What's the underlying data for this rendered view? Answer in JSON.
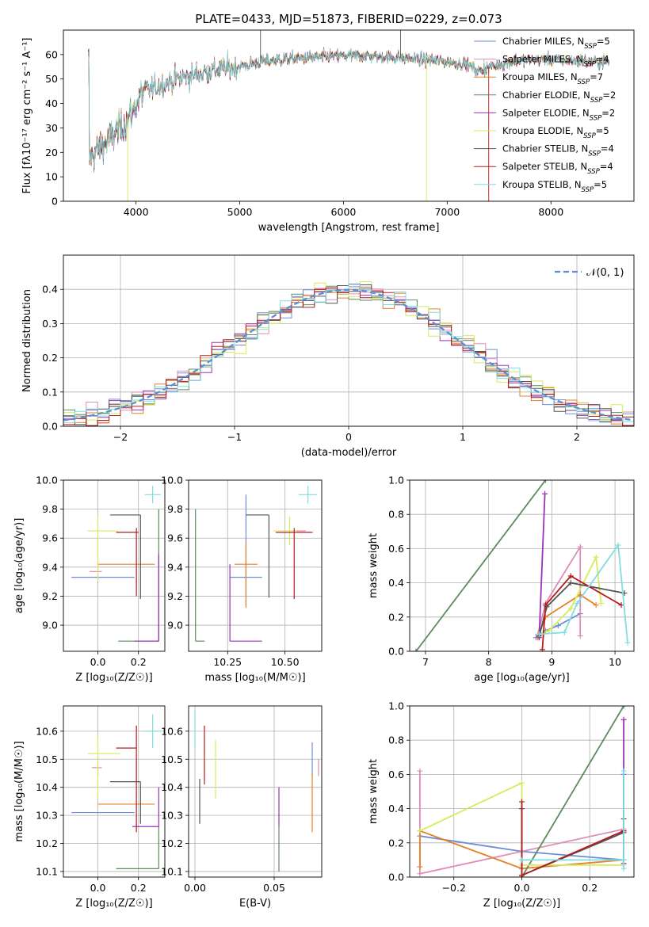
{
  "colors": {
    "chabrier_miles": "#6c8ed8",
    "salpeter_miles": "#e08bb8",
    "kroupa_miles": "#e6802a",
    "chabrier_elodie": "#5e8a60",
    "salpeter_elodie": "#9a32b8",
    "kroupa_elodie": "#d4ec5c",
    "chabrier_stelib": "#555555",
    "salpeter_stelib": "#b51c1c",
    "kroupa_stelib": "#7fdde0",
    "normal": "#5b8fd4"
  },
  "chart_data": [
    {
      "id": "spectrum",
      "type": "line",
      "title": "PLATE=0433, MJD=51873, FIBERID=0229, z=0.073",
      "xlabel": "wavelength [Angstrom, rest frame]",
      "ylabel": "Flux [fλ10⁻¹⁷ erg cm⁻² s⁻¹ A⁻¹]",
      "xlim": [
        3300,
        8800
      ],
      "ylim": [
        0,
        70
      ],
      "xticks": [
        "4000",
        "5000",
        "6000",
        "7000",
        "8000"
      ],
      "yticks": [
        "0",
        "10",
        "20",
        "30",
        "40",
        "50",
        "60"
      ],
      "continuum": [
        [
          3550,
          18
        ],
        [
          3700,
          24
        ],
        [
          3850,
          30
        ],
        [
          3950,
          35
        ],
        [
          4050,
          44
        ],
        [
          4200,
          47
        ],
        [
          4400,
          50
        ],
        [
          4600,
          52
        ],
        [
          4800,
          54
        ],
        [
          5000,
          55
        ],
        [
          5200,
          57
        ],
        [
          5400,
          58
        ],
        [
          5600,
          58.5
        ],
        [
          5800,
          59
        ],
        [
          6000,
          59.5
        ],
        [
          6200,
          59.5
        ],
        [
          6400,
          59
        ],
        [
          6600,
          58.5
        ],
        [
          6800,
          58
        ],
        [
          7000,
          57
        ],
        [
          7200,
          56
        ],
        [
          7300,
          53
        ],
        [
          7400,
          55
        ],
        [
          7600,
          57
        ],
        [
          7800,
          58
        ],
        [
          8000,
          58
        ],
        [
          8200,
          57.5
        ],
        [
          8500,
          57
        ]
      ],
      "spikes": [
        [
          3920,
          0
        ],
        [
          5200,
          80
        ],
        [
          6550,
          80
        ],
        [
          6800,
          0
        ],
        [
          7400,
          0
        ]
      ],
      "legend": "top-right",
      "legend_entries": [
        {
          "label": "Chabrier MILES, N",
          "sub": "SSP",
          "tail": "=5"
        },
        {
          "label": "Salpeter MILES, N",
          "sub": "SSP",
          "tail": "=4"
        },
        {
          "label": "Kroupa MILES, N",
          "sub": "SSP",
          "tail": "=7"
        },
        {
          "label": "Chabrier ELODIE, N",
          "sub": "SSP",
          "tail": "=2"
        },
        {
          "label": "Salpeter ELODIE, N",
          "sub": "SSP",
          "tail": "=2"
        },
        {
          "label": "Kroupa ELODIE, N",
          "sub": "SSP",
          "tail": "=5"
        },
        {
          "label": "Chabrier STELIB, N",
          "sub": "SSP",
          "tail": "=4"
        },
        {
          "label": "Salpeter STELIB, N",
          "sub": "SSP",
          "tail": "=4"
        },
        {
          "label": "Kroupa STELIB, N",
          "sub": "SSP",
          "tail": "=5"
        }
      ]
    },
    {
      "id": "residuals",
      "type": "line",
      "xlabel": "(data-model)/error",
      "ylabel": "Normed distribution",
      "xlim": [
        -2.5,
        2.5
      ],
      "ylim": [
        0,
        0.5
      ],
      "xticks": [
        "−2",
        "−1",
        "0",
        "1",
        "2"
      ],
      "yticks": [
        "0.0",
        "0.1",
        "0.2",
        "0.3",
        "0.4"
      ],
      "grid": true,
      "legend": "top-right",
      "legend_label": "𝒩(0, 1)",
      "bin_width": 0.1
    },
    {
      "id": "age_vs_Z",
      "type": "scatter",
      "xlabel": "Z [log₁₀(Z/Z☉)]",
      "ylabel": "age  [log₁₀(age/yr)]",
      "xlim": [
        -0.17,
        0.33
      ],
      "ylim": [
        8.82,
        10.0
      ],
      "xticks": [
        "0.0",
        "0.2"
      ],
      "yticks": [
        "9.0",
        "9.2",
        "9.4",
        "9.6",
        "9.8",
        "10.0"
      ],
      "points": [
        {
          "x": 0.0,
          "y": 9.33,
          "ex": [
            0.13,
            0.18
          ],
          "ey": [
            0.0,
            0.0
          ],
          "c": "chabrier_miles"
        },
        {
          "x": 0.0,
          "y": 9.37,
          "ex": [
            0.04,
            0.02
          ],
          "ey": [
            0.08,
            0.07
          ],
          "c": "salpeter_miles"
        },
        {
          "x": 0.0,
          "y": 9.42,
          "ex": [
            0.0,
            0.28
          ],
          "ey": [
            0.0,
            0.0
          ],
          "c": "kroupa_miles"
        },
        {
          "x": 0.3,
          "y": 8.89,
          "ex": [
            0.2,
            0.0
          ],
          "ey": [
            0.0,
            0.91
          ],
          "c": "chabrier_elodie"
        },
        {
          "x": 0.3,
          "y": 8.89,
          "ex": [
            0.12,
            0.0
          ],
          "ey": [
            0.0,
            0.6
          ],
          "c": "salpeter_elodie"
        },
        {
          "x": 0.0,
          "y": 9.65,
          "ex": [
            0.05,
            0.1
          ],
          "ey": [
            0.35,
            0.1
          ],
          "c": "kroupa_elodie"
        },
        {
          "x": 0.21,
          "y": 9.76,
          "ex": [
            0.15,
            0.0
          ],
          "ey": [
            0.58,
            0.0
          ],
          "c": "chabrier_stelib"
        },
        {
          "x": 0.19,
          "y": 9.64,
          "ex": [
            0.1,
            0.01
          ],
          "ey": [
            0.44,
            0.03
          ],
          "c": "salpeter_stelib"
        },
        {
          "x": 0.27,
          "y": 9.9,
          "ex": [
            0.04,
            0.04
          ],
          "ey": [
            0.06,
            0.06
          ],
          "c": "kroupa_stelib"
        }
      ]
    },
    {
      "id": "age_vs_mass",
      "type": "scatter",
      "xlabel": "mass [log₁₀(M/M☉)]",
      "ylabel": "",
      "xlim": [
        10.08,
        10.66
      ],
      "ylim": [
        8.82,
        10.0
      ],
      "xticks": [
        "10.25",
        "10.50"
      ],
      "yticks": [
        "9.0",
        "9.2",
        "9.4",
        "9.6",
        "9.8",
        "10.0"
      ],
      "points": [
        {
          "x": 10.33,
          "y": 9.33,
          "ex": [
            0.07,
            0.07
          ],
          "ey": [
            0.19,
            0.57
          ],
          "c": "chabrier_miles"
        },
        {
          "x": 10.58,
          "y": 9.65,
          "ex": [
            0.03,
            0.01
          ],
          "ey": [
            0.0,
            0.0
          ],
          "c": "salpeter_miles"
        },
        {
          "x": 10.33,
          "y": 9.42,
          "ex": [
            0.05,
            0.05
          ],
          "ey": [
            0.3,
            0.15
          ],
          "c": "kroupa_miles"
        },
        {
          "x": 10.11,
          "y": 8.89,
          "ex": [
            0.0,
            0.04
          ],
          "ey": [
            0.0,
            0.91
          ],
          "c": "chabrier_elodie"
        },
        {
          "x": 10.26,
          "y": 8.89,
          "ex": [
            0.0,
            0.14
          ],
          "ey": [
            0.0,
            0.53
          ],
          "c": "salpeter_elodie"
        },
        {
          "x": 10.52,
          "y": 9.65,
          "ex": [
            0.07,
            0.03
          ],
          "ey": [
            0.1,
            0.1
          ],
          "c": "kroupa_elodie"
        },
        {
          "x": 10.43,
          "y": 9.76,
          "ex": [
            0.1,
            0.0
          ],
          "ey": [
            0.57,
            0.0
          ],
          "c": "chabrier_stelib"
        },
        {
          "x": 10.54,
          "y": 9.64,
          "ex": [
            0.08,
            0.08
          ],
          "ey": [
            0.46,
            0.03
          ],
          "c": "salpeter_stelib"
        },
        {
          "x": 10.6,
          "y": 9.9,
          "ex": [
            0.04,
            0.04
          ],
          "ey": [
            0.06,
            0.06
          ],
          "c": "kroupa_stelib"
        }
      ]
    },
    {
      "id": "weight_vs_age",
      "type": "line",
      "xlabel": "age  [log₁₀(age/yr)]",
      "ylabel": "mass weight",
      "xlim": [
        6.75,
        10.3
      ],
      "ylim": [
        0,
        1.0
      ],
      "xticks": [
        "7",
        "8",
        "9",
        "10"
      ],
      "yticks": [
        "0.0",
        "0.2",
        "0.4",
        "0.6",
        "0.8",
        "1.0"
      ],
      "grid": true,
      "series": [
        {
          "c": "chabrier_miles",
          "x": [
            8.75,
            8.82,
            8.9,
            9.1,
            9.45
          ],
          "y": [
            0.08,
            0.1,
            0.12,
            0.15,
            0.22
          ]
        },
        {
          "c": "salpeter_miles",
          "x": [
            8.78,
            8.9,
            9.45,
            9.45
          ],
          "y": [
            0.1,
            0.28,
            0.61,
            0.09
          ]
        },
        {
          "c": "kroupa_miles",
          "x": [
            8.78,
            8.9,
            9.45,
            9.7
          ],
          "y": [
            0.08,
            0.2,
            0.33,
            0.27
          ]
        },
        {
          "c": "chabrier_elodie",
          "x": [
            6.85,
            8.9
          ],
          "y": [
            0.0,
            1.0
          ]
        },
        {
          "c": "salpeter_elodie",
          "x": [
            8.8,
            8.89
          ],
          "y": [
            0.08,
            0.92
          ]
        },
        {
          "c": "kroupa_elodie",
          "x": [
            8.8,
            8.95,
            9.3,
            9.7,
            9.78
          ],
          "y": [
            0.1,
            0.12,
            0.25,
            0.55,
            0.28
          ]
        },
        {
          "c": "chabrier_stelib",
          "x": [
            8.8,
            8.92,
            9.3,
            10.15
          ],
          "y": [
            0.09,
            0.26,
            0.4,
            0.34
          ]
        },
        {
          "c": "salpeter_stelib",
          "x": [
            8.85,
            8.9,
            9.3,
            10.1
          ],
          "y": [
            0.01,
            0.27,
            0.44,
            0.27
          ]
        },
        {
          "c": "kroupa_stelib",
          "x": [
            8.8,
            9.2,
            9.4,
            10.05,
            10.2
          ],
          "y": [
            0.1,
            0.11,
            0.28,
            0.62,
            0.05
          ]
        }
      ]
    },
    {
      "id": "mass_vs_Z",
      "type": "scatter",
      "xlabel": "Z [log₁₀(Z/Z☉)]",
      "ylabel": "mass [log₁₀(M/M☉)]",
      "xlim": [
        -0.17,
        0.33
      ],
      "ylim": [
        10.08,
        10.69
      ],
      "xticks": [
        "0.0",
        "0.2"
      ],
      "yticks": [
        "10.1",
        "10.2",
        "10.3",
        "10.4",
        "10.5",
        "10.6"
      ],
      "points": [
        {
          "x": 0.0,
          "y": 10.31,
          "ex": [
            0.13,
            0.18
          ],
          "ey": [
            0.0,
            0.0
          ],
          "c": "chabrier_miles"
        },
        {
          "x": 0.0,
          "y": 10.47,
          "ex": [
            0.03,
            0.02
          ],
          "ey": [
            0.03,
            0.04
          ],
          "c": "salpeter_miles"
        },
        {
          "x": 0.0,
          "y": 10.34,
          "ex": [
            0.0,
            0.28
          ],
          "ey": [
            0.0,
            0.0
          ],
          "c": "kroupa_miles"
        },
        {
          "x": 0.3,
          "y": 10.11,
          "ex": [
            0.21,
            0.0
          ],
          "ey": [
            0.0,
            0.15
          ],
          "c": "chabrier_elodie"
        },
        {
          "x": 0.3,
          "y": 10.26,
          "ex": [
            0.13,
            0.0
          ],
          "ey": [
            0.0,
            0.14
          ],
          "c": "salpeter_elodie"
        },
        {
          "x": 0.0,
          "y": 10.52,
          "ex": [
            0.05,
            0.11
          ],
          "ey": [
            0.16,
            0.06
          ],
          "c": "kroupa_elodie"
        },
        {
          "x": 0.21,
          "y": 10.42,
          "ex": [
            0.15,
            0.0
          ],
          "ey": [
            0.15,
            0.0
          ],
          "c": "chabrier_stelib"
        },
        {
          "x": 0.19,
          "y": 10.54,
          "ex": [
            0.1,
            0.0
          ],
          "ey": [
            0.3,
            0.08
          ],
          "c": "salpeter_stelib"
        },
        {
          "x": 0.27,
          "y": 10.6,
          "ex": [
            0.04,
            0.04
          ],
          "ey": [
            0.06,
            0.06
          ],
          "c": "kroupa_stelib"
        }
      ]
    },
    {
      "id": "mass_vs_ebv",
      "type": "scatter",
      "xlabel": "E(B-V)",
      "ylabel": "",
      "xlim": [
        -0.004,
        0.08
      ],
      "ylim": [
        10.08,
        10.69
      ],
      "xticks": [
        "0.00",
        "0.05"
      ],
      "yticks": [
        "10.1",
        "10.2",
        "10.3",
        "10.4",
        "10.5",
        "10.6"
      ],
      "points": [
        {
          "x": 0.074,
          "y": 10.5,
          "ex": [
            0.0,
            0.0
          ],
          "ey": [
            0.06,
            0.06
          ],
          "c": "chabrier_miles"
        },
        {
          "x": 0.078,
          "y": 10.47,
          "ex": [
            0.0,
            0.0
          ],
          "ey": [
            0.03,
            0.03
          ],
          "c": "salpeter_miles"
        },
        {
          "x": 0.074,
          "y": 10.35,
          "ex": [
            0.0,
            0.0
          ],
          "ey": [
            0.11,
            0.1
          ],
          "c": "kroupa_miles"
        },
        {
          "x": 0.053,
          "y": 10.18,
          "ex": [
            0.0,
            0.0
          ],
          "ey": [
            0.08,
            0.08
          ],
          "c": "chabrier_elodie"
        },
        {
          "x": 0.053,
          "y": 10.33,
          "ex": [
            0.0,
            0.0
          ],
          "ey": [
            0.07,
            0.07
          ],
          "c": "salpeter_elodie"
        },
        {
          "x": 0.013,
          "y": 10.47,
          "ex": [
            0.0,
            0.0
          ],
          "ey": [
            0.11,
            0.1
          ],
          "c": "kroupa_elodie"
        },
        {
          "x": 0.003,
          "y": 10.35,
          "ex": [
            0.0,
            0.0
          ],
          "ey": [
            0.08,
            0.08
          ],
          "c": "chabrier_stelib"
        },
        {
          "x": 0.006,
          "y": 10.5,
          "ex": [
            0.0,
            0.0
          ],
          "ey": [
            0.09,
            0.12
          ],
          "c": "salpeter_stelib"
        },
        {
          "x": 0.0,
          "y": 10.6,
          "ex": [
            0.0,
            0.0
          ],
          "ey": [
            0.06,
            0.07
          ],
          "c": "kroupa_stelib"
        }
      ]
    },
    {
      "id": "weight_vs_Z",
      "type": "line",
      "xlabel": "Z [log₁₀(Z/Z☉)]",
      "ylabel": "mass weight",
      "xlim": [
        -0.33,
        0.33
      ],
      "ylim": [
        0,
        1.0
      ],
      "xticks": [
        "−0.2",
        "0.0",
        "0.2"
      ],
      "yticks": [
        "0.0",
        "0.2",
        "0.4",
        "0.6",
        "0.8",
        "1.0"
      ],
      "grid": true,
      "series": [
        {
          "c": "chabrier_miles",
          "x": [
            -0.3,
            0.0,
            0.3,
            0.3
          ],
          "y": [
            0.24,
            0.15,
            0.1,
            0.6
          ]
        },
        {
          "c": "salpeter_miles",
          "x": [
            -0.3,
            -0.3,
            0.3
          ],
          "y": [
            0.62,
            0.02,
            0.28
          ]
        },
        {
          "c": "kroupa_miles",
          "x": [
            -0.3,
            -0.3,
            0.0,
            0.3
          ],
          "y": [
            0.06,
            0.27,
            0.05,
            0.1
          ]
        },
        {
          "c": "chabrier_elodie",
          "x": [
            0.0,
            0.3
          ],
          "y": [
            0.0,
            1.0
          ]
        },
        {
          "c": "salpeter_elodie",
          "x": [
            0.3,
            0.3
          ],
          "y": [
            0.08,
            0.92
          ]
        },
        {
          "c": "kroupa_elodie",
          "x": [
            -0.3,
            0.0,
            0.0,
            0.3
          ],
          "y": [
            0.27,
            0.55,
            0.07,
            0.07
          ]
        },
        {
          "c": "chabrier_stelib",
          "x": [
            0.0,
            0.0,
            0.3,
            0.3
          ],
          "y": [
            0.4,
            0.01,
            0.26,
            0.34
          ]
        },
        {
          "c": "salpeter_stelib",
          "x": [
            0.0,
            0.0,
            0.3,
            0.3
          ],
          "y": [
            0.44,
            0.01,
            0.27,
            0.27
          ]
        },
        {
          "c": "kroupa_stelib",
          "x": [
            0.0,
            0.3,
            0.3,
            0.3
          ],
          "y": [
            0.1,
            0.1,
            0.62,
            0.05
          ]
        }
      ]
    }
  ]
}
